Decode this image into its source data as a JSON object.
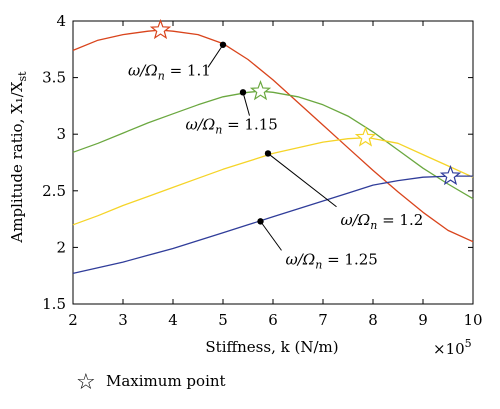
{
  "chart_data": {
    "type": "line",
    "xlabel": "Stiffness, k (N/m)",
    "ylabel": "Amplitude ratio, X₁/X",
    "ylabel_sub": "st",
    "x_multiplier_base": "×10",
    "x_multiplier_exp": "5",
    "xlim": [
      2,
      10
    ],
    "ylim": [
      1.5,
      4
    ],
    "xticks": [
      2,
      3,
      4,
      5,
      6,
      7,
      8,
      9,
      10
    ],
    "yticks": [
      1.5,
      2,
      2.5,
      3,
      3.5,
      4
    ],
    "grid": false,
    "legend": {
      "symbol": "☆",
      "label": "Maximum point",
      "placement": "bottom-left"
    },
    "series": [
      {
        "name": "ω/Ωn = 1.1",
        "color": "#d9441c",
        "x": [
          2,
          2.5,
          3,
          3.5,
          3.75,
          4,
          4.5,
          5,
          5.5,
          6,
          6.5,
          7,
          7.5,
          8,
          8.5,
          9,
          9.5,
          10
        ],
        "y": [
          3.74,
          3.83,
          3.88,
          3.91,
          3.92,
          3.91,
          3.88,
          3.8,
          3.66,
          3.48,
          3.28,
          3.08,
          2.88,
          2.68,
          2.49,
          2.31,
          2.15,
          2.05
        ],
        "maximum": {
          "x": 3.75,
          "y": 3.92
        },
        "marker": {
          "x": 5.0,
          "y": 3.79
        },
        "annotation": {
          "label": "ω/Ωn = 1.1",
          "x": 3.1,
          "y": 3.52
        }
      },
      {
        "name": "ω/Ωn = 1.15",
        "color": "#6ba840",
        "x": [
          2,
          2.5,
          3,
          3.5,
          4,
          4.5,
          5,
          5.5,
          5.75,
          6,
          6.5,
          7,
          7.5,
          8,
          8.5,
          9,
          9.5,
          10
        ],
        "y": [
          2.84,
          2.92,
          3.01,
          3.1,
          3.18,
          3.26,
          3.33,
          3.37,
          3.38,
          3.37,
          3.33,
          3.26,
          3.16,
          3.02,
          2.86,
          2.7,
          2.56,
          2.43
        ],
        "maximum": {
          "x": 5.75,
          "y": 3.38
        },
        "marker": {
          "x": 5.4,
          "y": 3.37
        },
        "annotation": {
          "label": "ω/Ωn = 1.15",
          "x": 4.25,
          "y": 3.04
        }
      },
      {
        "name": "ω/Ωn = 1.2",
        "color": "#f5d428",
        "x": [
          2,
          2.5,
          3,
          3.5,
          4,
          4.5,
          5,
          5.5,
          6,
          6.5,
          7,
          7.5,
          7.9,
          8.5,
          9,
          9.5,
          10
        ],
        "y": [
          2.2,
          2.28,
          2.37,
          2.45,
          2.53,
          2.61,
          2.69,
          2.76,
          2.83,
          2.88,
          2.93,
          2.96,
          2.97,
          2.92,
          2.82,
          2.72,
          2.62
        ],
        "maximum": {
          "x": 7.85,
          "y": 2.97
        },
        "marker": {
          "x": 5.9,
          "y": 2.83
        },
        "annotation": {
          "label": "ω/Ωn = 1.2",
          "x": 7.35,
          "y": 2.2
        }
      },
      {
        "name": "ω/Ωn = 1.25",
        "color": "#303d9a",
        "x": [
          2,
          2.5,
          3,
          3.5,
          4,
          4.5,
          5,
          5.5,
          6,
          6.5,
          7,
          7.5,
          8,
          8.5,
          9,
          9.55,
          10
        ],
        "y": [
          1.77,
          1.82,
          1.87,
          1.93,
          1.99,
          2.06,
          2.13,
          2.2,
          2.27,
          2.34,
          2.41,
          2.48,
          2.55,
          2.59,
          2.62,
          2.63,
          2.63
        ],
        "maximum": {
          "x": 9.55,
          "y": 2.63
        },
        "marker": {
          "x": 5.75,
          "y": 2.23
        },
        "annotation": {
          "label": "ω/Ωn = 1.25",
          "x": 6.25,
          "y": 1.85
        }
      }
    ]
  }
}
